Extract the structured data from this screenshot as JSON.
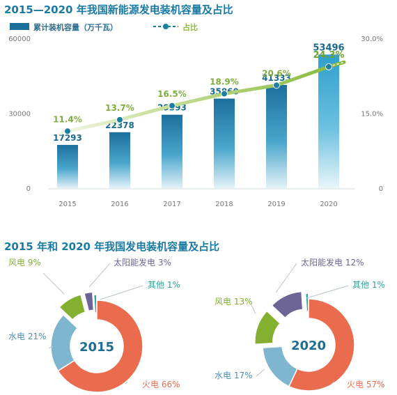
{
  "title_top": "2015—2020 年我国新能源发电装机容量及占比",
  "legend": {
    "bar_label": "累计装机容量（万千瓦）",
    "line_label": "占比"
  },
  "title_bottom": "2015 年和 2020 年我国发电装机容量及占比",
  "colors": {
    "bar_top": "#1c6f9c",
    "bar_bottom": "#e3f2f8",
    "line": "#8cbb3e",
    "dot": "#1a7fa0",
    "title": "#1b7aa3"
  },
  "chart_data": [
    {
      "type": "bar",
      "categories": [
        "2015",
        "2016",
        "2017",
        "2018",
        "2019",
        "2020"
      ],
      "series": [
        {
          "name": "累计装机容量（万千瓦）",
          "axis": "left",
          "values": [
            17293,
            22378,
            29393,
            35860,
            41333,
            53496
          ],
          "labels": [
            "17293",
            "22378",
            "29393",
            "35860",
            "41333",
            "53496"
          ]
        },
        {
          "name": "占比",
          "type": "line",
          "axis": "right",
          "values": [
            11.4,
            13.7,
            16.5,
            18.9,
            20.6,
            24.3
          ],
          "labels": [
            "11.4%",
            "13.7%",
            "16.5%",
            "18.9%",
            "20.6%",
            "24.3%"
          ]
        }
      ],
      "y_left": {
        "ticks": [
          "0",
          "30000",
          "60000"
        ],
        "range": [
          0,
          60000
        ]
      },
      "y_right": {
        "ticks": [
          "0",
          "15.0%",
          "30.0%"
        ],
        "range": [
          0,
          30
        ]
      },
      "grid": false,
      "legend_position": "top-left"
    },
    {
      "type": "pie",
      "center_label": "2015",
      "slices": [
        {
          "name": "火电",
          "value": 66,
          "label": "火电 66%",
          "color": "#ea6b4e"
        },
        {
          "name": "水电",
          "value": 21,
          "label": "水电 21%",
          "color": "#7fb6cf"
        },
        {
          "name": "风电",
          "value": 9,
          "label": "风电 9%",
          "color": "#83b02f"
        },
        {
          "name": "太阳能发电",
          "value": 3,
          "label": "太阳能发电 3%",
          "color": "#6e6597"
        },
        {
          "name": "其他",
          "value": 1,
          "label": "其他 1%",
          "color": "#23a89b"
        }
      ]
    },
    {
      "type": "pie",
      "center_label": "2020",
      "slices": [
        {
          "name": "火电",
          "value": 57,
          "label": "火电 57%",
          "color": "#ea6b4e"
        },
        {
          "name": "水电",
          "value": 17,
          "label": "水电 17%",
          "color": "#7fb6cf"
        },
        {
          "name": "风电",
          "value": 13,
          "label": "风电 13%",
          "color": "#83b02f"
        },
        {
          "name": "太阳能发电",
          "value": 12,
          "label": "太阳能发电 12%",
          "color": "#6e6597"
        },
        {
          "name": "其他",
          "value": 1,
          "label": "其他 1%",
          "color": "#23a89b"
        }
      ]
    }
  ]
}
